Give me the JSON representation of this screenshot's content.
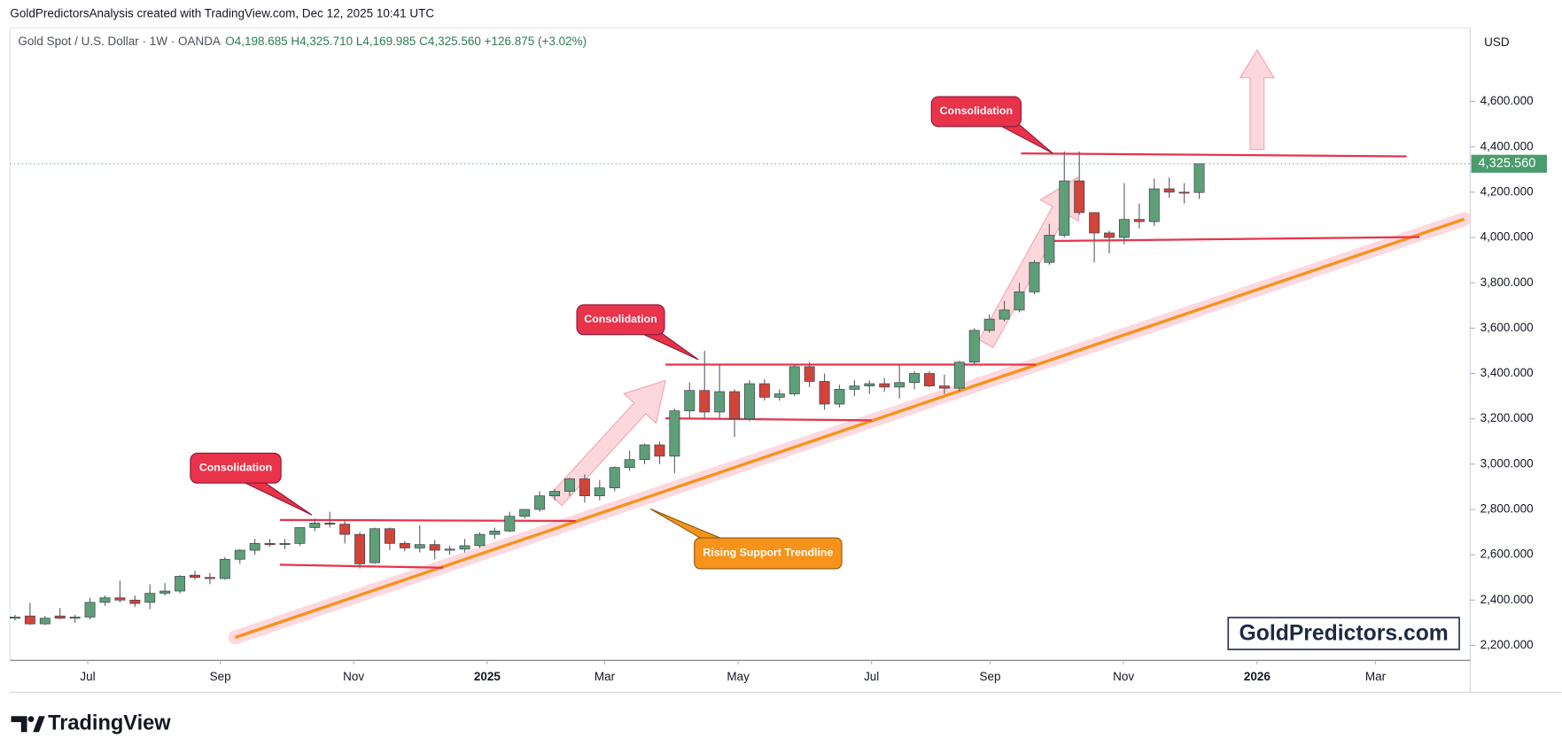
{
  "header": {
    "credit": "GoldPredictorsAnalysis created with TradingView.com, Dec 12, 2025 10:41 UTC",
    "symbol": "Gold Spot / U.S. Dollar · 1W · OANDA",
    "ohlc_legend": "O4,198.685 H4,325.710 L4,169.985 C4,325.560 +126.875 (+3.02%)"
  },
  "currency": "USD",
  "footer_logo": "TradingView",
  "watermark": "GoldPredictors.com",
  "annotations": [
    "Consolidation",
    "Consolidation",
    "Consolidation",
    "Rising Support Trendline"
  ],
  "chart_data": {
    "type": "candlestick",
    "up_color": "#5e9e79",
    "down_color": "#d0443a",
    "ohlc": {
      "open": [
        2320,
        2330,
        2295,
        2330,
        2320,
        2325,
        2390,
        2410,
        2400,
        2390,
        2430,
        2440,
        2510,
        2500,
        2495,
        2580,
        2620,
        2650,
        2645,
        2650,
        2720,
        2740,
        2735,
        2690,
        2565,
        2715,
        2650,
        2630,
        2645,
        2620,
        2625,
        2640,
        2690,
        2705,
        2770,
        2800,
        2860,
        2880,
        2935,
        2860,
        2895,
        2985,
        3020,
        3085,
        3035,
        3235,
        3325,
        3230,
        3320,
        3200,
        3355,
        3295,
        3310,
        3430,
        3365,
        3265,
        3330,
        3345,
        3355,
        3340,
        3360,
        3400,
        3345,
        3335,
        3450,
        3590,
        3640,
        3680,
        3760,
        3890,
        4010,
        4250,
        4110,
        4020,
        4000,
        4080,
        4070,
        4215,
        4200,
        4198.685
      ],
      "high": [
        2335,
        2387,
        2330,
        2365,
        2335,
        2410,
        2420,
        2485,
        2420,
        2470,
        2475,
        2510,
        2530,
        2520,
        2590,
        2625,
        2670,
        2670,
        2670,
        2720,
        2760,
        2790,
        2750,
        2700,
        2720,
        2720,
        2660,
        2730,
        2665,
        2640,
        2670,
        2700,
        2720,
        2790,
        2800,
        2880,
        2890,
        2940,
        2955,
        2930,
        2990,
        3060,
        3090,
        3100,
        3245,
        3360,
        3500,
        3440,
        3330,
        3370,
        3375,
        3330,
        3440,
        3450,
        3400,
        3350,
        3370,
        3370,
        3380,
        3440,
        3410,
        3410,
        3395,
        3455,
        3600,
        3660,
        3720,
        3800,
        3900,
        4060,
        4380,
        4380,
        4110,
        4030,
        4240,
        4150,
        4260,
        4265,
        4240,
        4325.71
      ],
      "low": [
        2310,
        2290,
        2290,
        2315,
        2300,
        2315,
        2375,
        2390,
        2370,
        2360,
        2420,
        2430,
        2490,
        2470,
        2490,
        2560,
        2600,
        2635,
        2625,
        2640,
        2705,
        2720,
        2650,
        2540,
        2560,
        2620,
        2615,
        2610,
        2580,
        2600,
        2610,
        2630,
        2670,
        2700,
        2760,
        2790,
        2840,
        2860,
        2830,
        2840,
        2880,
        2970,
        3000,
        3000,
        2960,
        3200,
        3200,
        3200,
        3120,
        3190,
        3280,
        3280,
        3300,
        3340,
        3240,
        3250,
        3300,
        3310,
        3320,
        3290,
        3330,
        3340,
        3310,
        3320,
        3440,
        3580,
        3630,
        3670,
        3750,
        3880,
        4000,
        4100,
        3890,
        3930,
        3970,
        4040,
        4050,
        4175,
        4150,
        4169.985
      ],
      "close": [
        2325,
        2295,
        2320,
        2320,
        2325,
        2390,
        2410,
        2400,
        2385,
        2430,
        2440,
        2505,
        2500,
        2495,
        2580,
        2620,
        2650,
        2645,
        2650,
        2720,
        2740,
        2735,
        2690,
        2560,
        2715,
        2650,
        2630,
        2645,
        2620,
        2625,
        2640,
        2690,
        2705,
        2770,
        2800,
        2860,
        2880,
        2935,
        2860,
        2895,
        2985,
        3020,
        3085,
        3035,
        3235,
        3325,
        3230,
        3320,
        3200,
        3355,
        3295,
        3310,
        3430,
        3365,
        3265,
        3330,
        3345,
        3355,
        3340,
        3360,
        3400,
        3345,
        3335,
        3450,
        3590,
        3640,
        3680,
        3760,
        3890,
        4010,
        4250,
        4110,
        4020,
        4000,
        4080,
        4070,
        4215,
        4200,
        4198.685,
        4325.56
      ]
    },
    "last_price": {
      "value": 4325.56,
      "label": "4,325.560"
    },
    "last_price_color": "#4a9c6d",
    "xlim": [
      -0.33,
      97.08
    ],
    "xticks": [
      {
        "value": 4.85,
        "label": "Jul"
      },
      {
        "value": 13.69,
        "label": "Sep"
      },
      {
        "value": 22.59,
        "label": "Nov"
      },
      {
        "value": 31.5,
        "label": "2025"
      },
      {
        "value": 39.34,
        "label": "Mar"
      },
      {
        "value": 48.24,
        "label": "May"
      },
      {
        "value": 57.14,
        "label": "Jul"
      },
      {
        "value": 65.05,
        "label": "Sep"
      },
      {
        "value": 73.95,
        "label": "Nov"
      },
      {
        "value": 82.86,
        "label": "2026"
      },
      {
        "value": 90.76,
        "label": "Mar"
      }
    ],
    "ylim": [
      2134,
      4925
    ],
    "yticks": [
      {
        "value": 2200,
        "label": "2,200.000"
      },
      {
        "value": 2400,
        "label": "2,400.000"
      },
      {
        "value": 2600,
        "label": "2,600.000"
      },
      {
        "value": 2800,
        "label": "2,800.000"
      },
      {
        "value": 3000,
        "label": "3,000.000"
      },
      {
        "value": 3200,
        "label": "3,200.000"
      },
      {
        "value": 3400,
        "label": "3,400.000"
      },
      {
        "value": 3600,
        "label": "3,600.000"
      },
      {
        "value": 3800,
        "label": "3,800.000"
      },
      {
        "value": 4000,
        "label": "4,000.000"
      },
      {
        "value": 4200,
        "label": "4,200.000"
      },
      {
        "value": 4400,
        "label": "4,400.000"
      },
      {
        "value": 4600,
        "label": "4,600.000"
      }
    ],
    "grid": false
  }
}
